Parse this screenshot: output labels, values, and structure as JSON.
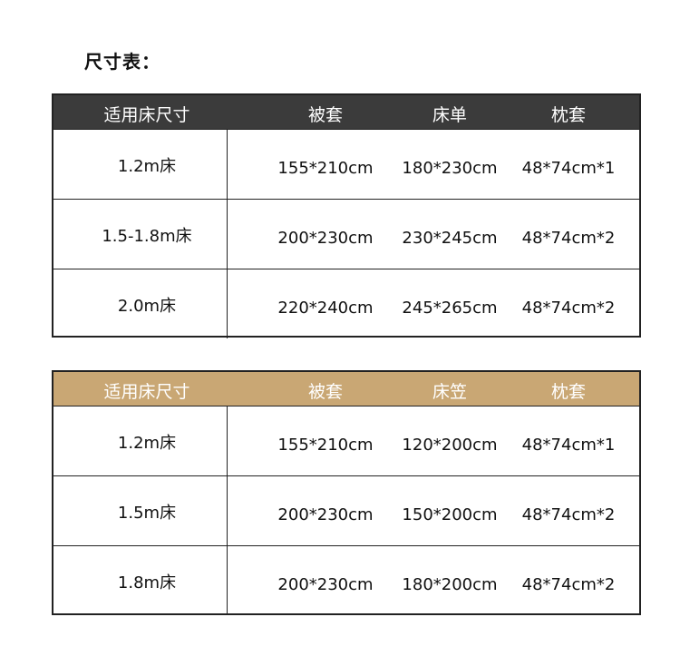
{
  "title": "尺寸表：",
  "colors": {
    "header_dark": "#3b3b3b",
    "header_gold": "#c9a774"
  },
  "tables": [
    {
      "headers": [
        "适用床尺寸",
        "被套",
        "床单",
        "枕套"
      ],
      "rows": [
        [
          "1.2m床",
          "155*210cm",
          "180*230cm",
          "48*74cm*1"
        ],
        [
          "1.5-1.8m床",
          "200*230cm",
          "230*245cm",
          "48*74cm*2"
        ],
        [
          "2.0m床",
          "220*240cm",
          "245*265cm",
          "48*74cm*2"
        ]
      ]
    },
    {
      "headers": [
        "适用床尺寸",
        "被套",
        "床笠",
        "枕套"
      ],
      "rows": [
        [
          "1.2m床",
          "155*210cm",
          "120*200cm",
          "48*74cm*1"
        ],
        [
          "1.5m床",
          "200*230cm",
          "150*200cm",
          "48*74cm*2"
        ],
        [
          "1.8m床",
          "200*230cm",
          "180*200cm",
          "48*74cm*2"
        ]
      ]
    }
  ]
}
